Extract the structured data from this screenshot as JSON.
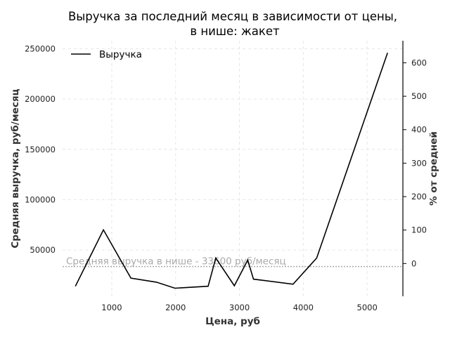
{
  "chart_data": {
    "type": "line",
    "title": [
      "Выручка за последний месяц в зависимости от цены,",
      "в нише: жакет"
    ],
    "xlabel": "Цена, руб",
    "ylabel": "Средняя выручка, руб/месяц",
    "ylabel_right": "% от средней",
    "xlim": [
      230,
      5560
    ],
    "ylim": [
      4000,
      258000
    ],
    "ylim_right": [
      -98,
      666
    ],
    "x_ticks": [
      1000,
      2000,
      3000,
      4000,
      5000
    ],
    "y_ticks": [
      50000,
      100000,
      150000,
      200000,
      250000
    ],
    "y_ticks_right": [
      0,
      100,
      200,
      300,
      400,
      500,
      600
    ],
    "grid": true,
    "legend": {
      "position": "top-left",
      "entries": [
        "Выручка"
      ]
    },
    "series": [
      {
        "name": "Выручка",
        "color": "#000000",
        "x": [
          430,
          870,
          1300,
          1700,
          1990,
          2510,
          2630,
          2920,
          3130,
          3220,
          3840,
          4210,
          5320
        ],
        "y": [
          14000,
          70000,
          22000,
          18000,
          12000,
          14000,
          42000,
          14500,
          40000,
          21000,
          16000,
          42000,
          246000
        ]
      }
    ],
    "reference_line": {
      "value": 33600,
      "label": "Средняя выручка в нише - 33600 руб/месяц",
      "color": "#aaaaaa"
    }
  }
}
